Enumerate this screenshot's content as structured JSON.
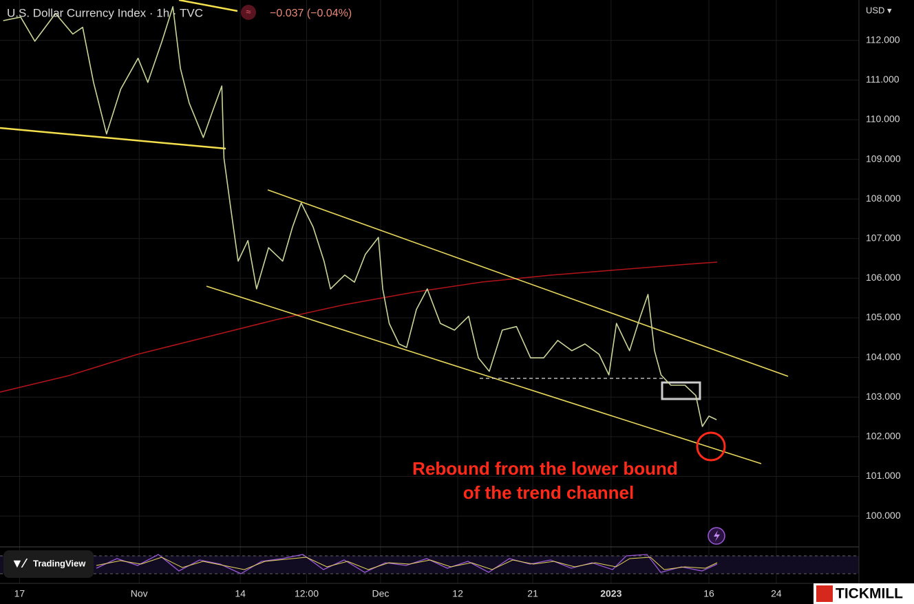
{
  "chart_data": {
    "type": "line",
    "title": "U.S. Dollar Currency Index · 1h · TVC",
    "change": "−0.037 (−0.04%)",
    "currency": "USD ▾",
    "annotation": [
      "Rebound from the lower bound",
      "of the trend channel"
    ],
    "color": "#c9d69a",
    "grid": true,
    "x": [
      -1.5,
      0.1,
      1.4,
      3.3,
      4.9,
      5.8,
      6.8,
      8.0,
      9.3,
      10.9,
      11.8,
      13.1,
      14.1,
      14.8,
      15.6,
      16.9,
      17.8,
      18.6,
      18.8,
      19.4,
      20.1,
      21.0,
      21.8,
      22.9,
      24.2,
      25.1,
      25.9,
      27.0,
      28.0,
      28.6,
      29.9,
      30.8,
      31.8,
      33.0,
      33.4,
      34.0,
      34.9,
      35.6,
      36.5,
      37.5,
      38.7,
      40.0,
      41.3,
      42.2,
      43.2,
      44.4,
      45.7,
      47.0,
      48.2,
      49.5,
      50.8,
      52.0,
      53.3,
      54.2,
      54.9,
      56.1,
      57.1,
      57.8,
      58.4,
      59.0,
      59.9,
      61.2,
      62.2,
      62.8,
      63.4,
      64.1
    ],
    "values": [
      112.5,
      112.59,
      111.98,
      112.68,
      112.16,
      112.33,
      110.94,
      109.64,
      110.77,
      111.55,
      110.94,
      111.98,
      112.85,
      111.29,
      110.42,
      109.55,
      110.25,
      110.85,
      109.03,
      107.81,
      106.43,
      106.95,
      105.73,
      106.77,
      106.43,
      107.29,
      107.9,
      107.29,
      106.43,
      105.73,
      106.08,
      105.9,
      106.6,
      107.03,
      105.73,
      104.86,
      104.34,
      104.25,
      105.21,
      105.73,
      104.86,
      104.69,
      105.04,
      103.99,
      103.65,
      104.69,
      104.78,
      103.99,
      103.99,
      104.43,
      104.17,
      104.34,
      104.08,
      103.56,
      104.86,
      104.17,
      105.04,
      105.59,
      104.17,
      103.56,
      103.3,
      103.3,
      103.04,
      102.26,
      102.52,
      102.43
    ],
    "xlim": [
      -1.8,
      77.2
    ],
    "ylim": [
      99.22,
      113.02
    ],
    "xticks": [
      {
        "value": 0,
        "label": "17"
      },
      {
        "value": 11,
        "label": "Nov"
      },
      {
        "value": 20.3,
        "label": "14"
      },
      {
        "value": 26.4,
        "label": "12:00"
      },
      {
        "value": 33.2,
        "label": "Dec"
      },
      {
        "value": 40.3,
        "label": "12"
      },
      {
        "value": 47.2,
        "label": "21"
      },
      {
        "value": 54.4,
        "label": "2023"
      },
      {
        "value": 63.4,
        "label": "16"
      },
      {
        "value": 69.6,
        "label": "24"
      }
    ],
    "yticks": [
      {
        "value": 100,
        "label": "100.000"
      },
      {
        "value": 101,
        "label": "101.000"
      },
      {
        "value": 102,
        "label": "102.000"
      },
      {
        "value": 103,
        "label": "103.000"
      },
      {
        "value": 104,
        "label": "104.000"
      },
      {
        "value": 105,
        "label": "105.000"
      },
      {
        "value": 106,
        "label": "106.000"
      },
      {
        "value": 107,
        "label": "107.000"
      },
      {
        "value": 108,
        "label": "108.000"
      },
      {
        "value": 109,
        "label": "109.000"
      },
      {
        "value": 110,
        "label": "110.000"
      },
      {
        "value": 111,
        "label": "111.000"
      },
      {
        "value": 112,
        "label": "112.000"
      }
    ]
  },
  "branding": {
    "platform": "TradingView",
    "broker": "TICKMILL"
  }
}
